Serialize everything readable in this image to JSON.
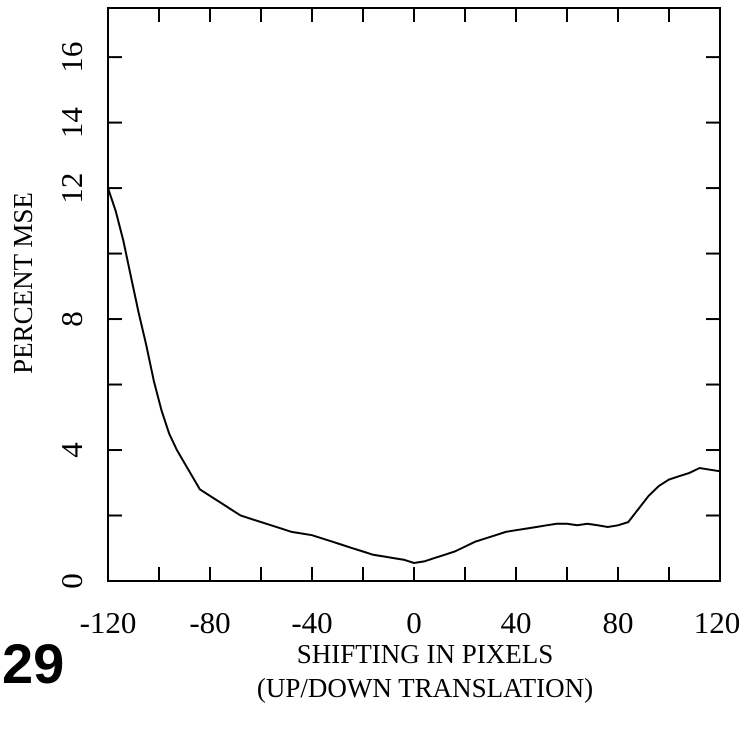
{
  "figure": {
    "number": "29"
  },
  "chart_data": {
    "type": "line",
    "title": "",
    "xlabel_lines": [
      "SHIFTING IN PIXELS",
      "(UP/DOWN TRANSLATION)"
    ],
    "ylabel": "PERCENT MSE",
    "xlim": [
      -120,
      120
    ],
    "ylim": [
      0,
      17.5
    ],
    "xticks": [
      -120,
      -80,
      -40,
      0,
      40,
      80,
      120
    ],
    "xtick_labels": [
      "-120",
      "-80",
      "-40",
      "0",
      "40",
      "80",
      "120"
    ],
    "yticks": [
      0,
      4,
      8,
      12,
      14,
      16
    ],
    "ytick_labels": [
      "0",
      "4",
      "8",
      "12",
      "14",
      "16"
    ],
    "y_minor_ticks": [
      2,
      6,
      10
    ],
    "x_minor_ticks": [
      -100,
      -60,
      -20,
      20,
      60,
      100
    ],
    "grid": false,
    "series": [
      {
        "color": "#000000",
        "x": [
          -120,
          -117,
          -114,
          -111,
          -108,
          -105,
          -102,
          -99,
          -96,
          -93,
          -90,
          -87,
          -84,
          -80,
          -76,
          -72,
          -68,
          -64,
          -60,
          -56,
          -52,
          -48,
          -44,
          -40,
          -36,
          -32,
          -28,
          -24,
          -20,
          -16,
          -12,
          -8,
          -4,
          0,
          4,
          8,
          12,
          16,
          20,
          24,
          28,
          32,
          36,
          40,
          44,
          48,
          52,
          56,
          60,
          64,
          68,
          72,
          76,
          80,
          84,
          88,
          92,
          96,
          100,
          104,
          108,
          112,
          116,
          120
        ],
        "y": [
          12.0,
          11.3,
          10.4,
          9.3,
          8.2,
          7.2,
          6.1,
          5.2,
          4.5,
          4.0,
          3.6,
          3.2,
          2.8,
          2.6,
          2.4,
          2.2,
          2.0,
          1.9,
          1.8,
          1.7,
          1.6,
          1.5,
          1.45,
          1.4,
          1.3,
          1.2,
          1.1,
          1.0,
          0.9,
          0.8,
          0.75,
          0.7,
          0.65,
          0.55,
          0.6,
          0.7,
          0.8,
          0.9,
          1.05,
          1.2,
          1.3,
          1.4,
          1.5,
          1.55,
          1.6,
          1.65,
          1.7,
          1.75,
          1.75,
          1.7,
          1.75,
          1.7,
          1.65,
          1.7,
          1.8,
          2.2,
          2.6,
          2.9,
          3.1,
          3.2,
          3.3,
          3.45,
          3.4,
          3.35
        ]
      }
    ]
  }
}
